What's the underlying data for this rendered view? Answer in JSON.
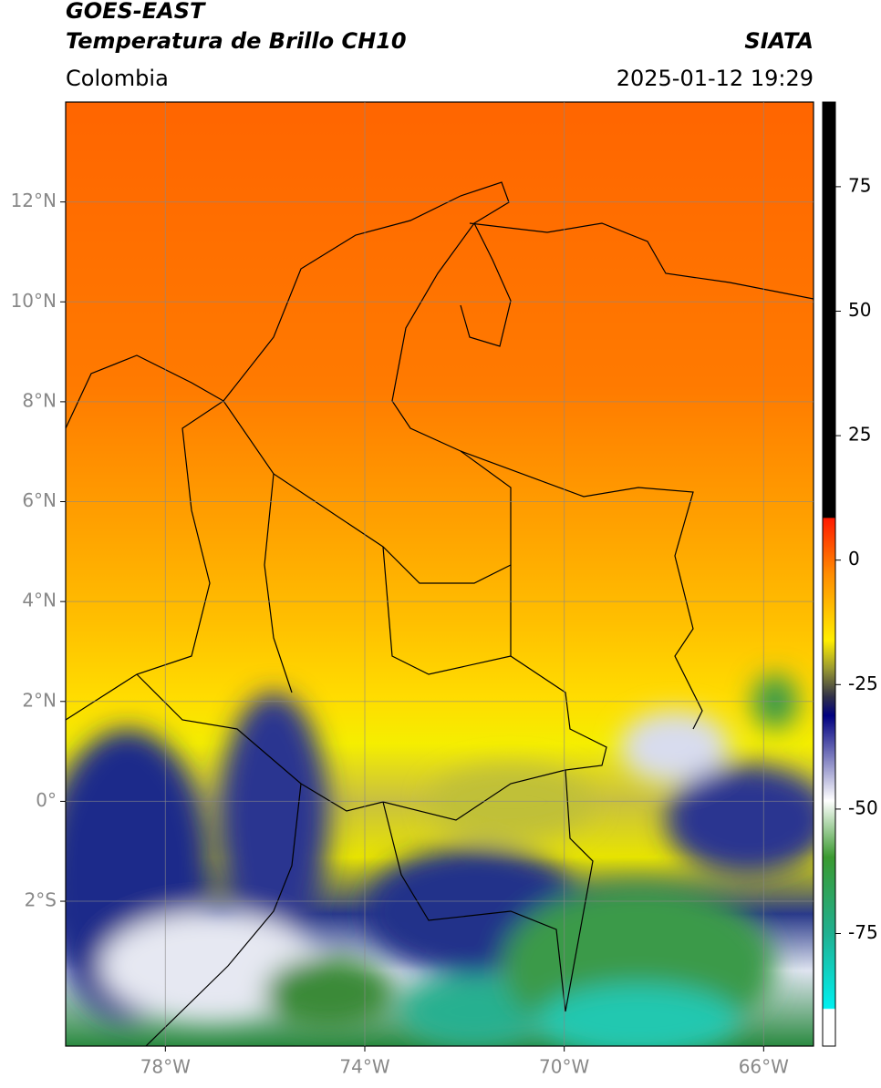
{
  "header": {
    "title": "GOES-EAST",
    "subtitle": "Temperatura de Brillo CH10",
    "source": "SIATA",
    "region": "Colombia",
    "timestamp": "2025-01-12 19:29"
  },
  "map": {
    "xlim": [
      -80,
      -65
    ],
    "ylim": [
      -4.9,
      14
    ],
    "xticks": [
      {
        "value": -78,
        "label": "78°W"
      },
      {
        "value": -74,
        "label": "74°W"
      },
      {
        "value": -70,
        "label": "70°W"
      },
      {
        "value": -66,
        "label": "66°W"
      }
    ],
    "yticks": [
      {
        "value": 12,
        "label": "12°N"
      },
      {
        "value": 10,
        "label": "10°N"
      },
      {
        "value": 8,
        "label": "8°N"
      },
      {
        "value": 6,
        "label": "6°N"
      },
      {
        "value": 4,
        "label": "4°N"
      },
      {
        "value": 2,
        "label": "2°N"
      },
      {
        "value": 0,
        "label": "0°"
      },
      {
        "value": -2,
        "label": "2°S"
      }
    ],
    "grid": true
  },
  "colorbar": {
    "lim": [
      -97.6,
      92
    ],
    "ticks": [
      75,
      50,
      25,
      0,
      -25,
      -50,
      -75
    ]
  }
}
